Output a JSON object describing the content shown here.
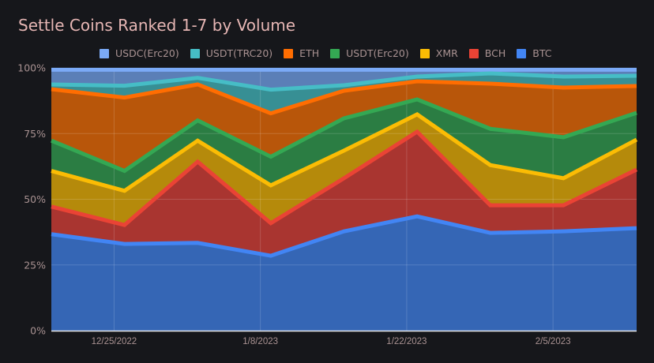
{
  "chart_data": {
    "type": "area",
    "stacked": true,
    "normalized": true,
    "title": "Settle Coins Ranked 1-7 by Volume",
    "xlabel": "",
    "ylabel": "",
    "ylim": [
      0,
      100
    ],
    "y_ticks": [
      "0%",
      "25%",
      "50%",
      "75%",
      "100%"
    ],
    "y_tick_values": [
      0,
      25,
      50,
      75,
      100
    ],
    "x_ticks": [
      "12/25/2022",
      "1/8/2023",
      "1/22/2023",
      "2/5/2023"
    ],
    "x_tick_dates": [
      "2022-12-25",
      "2023-01-08",
      "2023-01-22",
      "2023-02-05"
    ],
    "x": [
      "2022-12-19",
      "2022-12-26",
      "2023-01-02",
      "2023-01-09",
      "2023-01-16",
      "2023-01-23",
      "2023-01-30",
      "2023-02-06",
      "2023-02-13"
    ],
    "grid": true,
    "legend_position": "top",
    "series": [
      {
        "name": "BTC",
        "color": "#4285f4",
        "fill": "#3566b5",
        "values": [
          36.7,
          33.0,
          33.4,
          28.5,
          37.8,
          43.5,
          37.2,
          37.8,
          39.0
        ]
      },
      {
        "name": "BCH",
        "color": "#ea4335",
        "fill": "#a93530",
        "values": [
          10.5,
          7.2,
          30.9,
          12.4,
          20.2,
          32.2,
          10.5,
          9.9,
          22.3
        ]
      },
      {
        "name": "XMR",
        "color": "#fbbc04",
        "fill": "#b58a0b",
        "values": [
          13.6,
          13.0,
          8.0,
          14.4,
          10.5,
          6.6,
          15.3,
          10.3,
          11.4
        ]
      },
      {
        "name": "USDT(Erc20)",
        "color": "#34a853",
        "fill": "#2b7d43",
        "values": [
          11.5,
          7.6,
          7.7,
          10.9,
          12.3,
          5.7,
          13.8,
          15.6,
          10.2
        ]
      },
      {
        "name": "ETH",
        "color": "#ff6d01",
        "fill": "#b8560a",
        "values": [
          19.6,
          27.9,
          13.7,
          16.5,
          10.5,
          6.9,
          17.2,
          18.9,
          10.2
        ]
      },
      {
        "name": "USDT(TRC20)",
        "color": "#46bdc6",
        "fill": "#378f94",
        "values": [
          1.8,
          4.5,
          2.5,
          9.0,
          2.1,
          1.8,
          3.9,
          4.2,
          3.9
        ]
      },
      {
        "name": "USDC(Erc20)",
        "color": "#7baaf7",
        "fill": "#5b7fb7",
        "values": [
          6.3,
          6.8,
          3.8,
          8.3,
          6.6,
          3.3,
          2.1,
          3.3,
          3.0
        ]
      }
    ],
    "legend_order": [
      "USDC(Erc20)",
      "USDT(TRC20)",
      "ETH",
      "USDT(Erc20)",
      "XMR",
      "BCH",
      "BTC"
    ]
  }
}
